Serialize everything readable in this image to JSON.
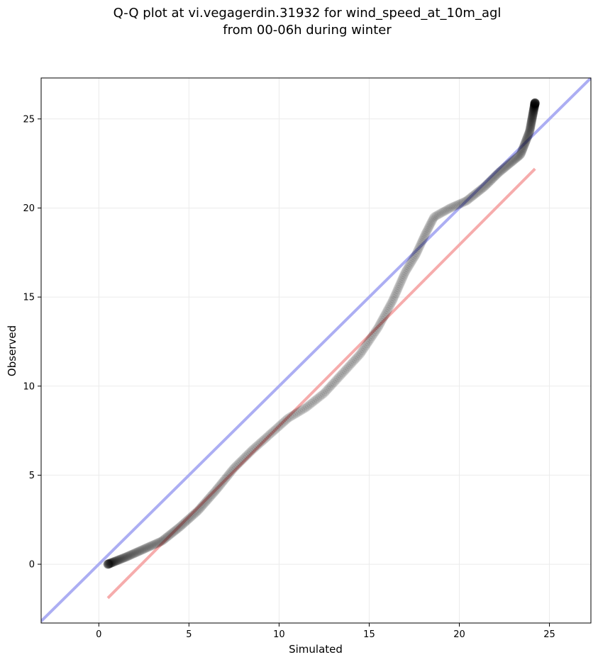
{
  "chart_data": {
    "type": "scatter",
    "title": "Q-Q plot at vi.vegagerdin.31932 for wind_speed_at_10m_agl",
    "subtitle": "from 00-06h during winter",
    "xlabel": "Simulated",
    "ylabel": "Observed",
    "xlim": [
      -3.2,
      27.3
    ],
    "ylim": [
      -3.3,
      27.3
    ],
    "xticks": [
      0,
      5,
      10,
      15,
      20,
      25
    ],
    "yticks": [
      0,
      5,
      10,
      15,
      20,
      25
    ],
    "xtick_labels": [
      "0",
      "5",
      "10",
      "15",
      "20",
      "25"
    ],
    "ytick_labels": [
      "0",
      "5",
      "10",
      "15",
      "20",
      "25"
    ],
    "grid": true,
    "point_color": "#000000",
    "curve_knots": [
      [
        0.5,
        0.0
      ],
      [
        1.5,
        0.4
      ],
      [
        2.5,
        0.85
      ],
      [
        3.5,
        1.3
      ],
      [
        4.5,
        2.1
      ],
      [
        5.5,
        3.0
      ],
      [
        6.5,
        4.15
      ],
      [
        7.5,
        5.4
      ],
      [
        8.5,
        6.4
      ],
      [
        9.5,
        7.3
      ],
      [
        10.5,
        8.2
      ],
      [
        11.5,
        8.8
      ],
      [
        12.5,
        9.6
      ],
      [
        13.5,
        10.7
      ],
      [
        14.5,
        11.8
      ],
      [
        15.5,
        13.3
      ],
      [
        16.3,
        14.8
      ],
      [
        17.0,
        16.4
      ],
      [
        17.6,
        17.4
      ],
      [
        18.1,
        18.5
      ],
      [
        18.6,
        19.5
      ],
      [
        19.5,
        20.0
      ],
      [
        20.4,
        20.4
      ],
      [
        21.4,
        21.2
      ],
      [
        22.2,
        22.0
      ],
      [
        23.4,
        23.0
      ],
      [
        23.9,
        24.3
      ],
      [
        24.2,
        25.9
      ]
    ],
    "point_count": 460,
    "reference_lines": [
      {
        "x": [
          -3.2,
          27.3
        ],
        "y": [
          -3.2,
          27.3
        ],
        "color": "#a8aaf2"
      },
      {
        "x": [
          0.5,
          24.2
        ],
        "y": [
          -1.9,
          22.2
        ],
        "color": "#f6a8a8"
      }
    ]
  }
}
